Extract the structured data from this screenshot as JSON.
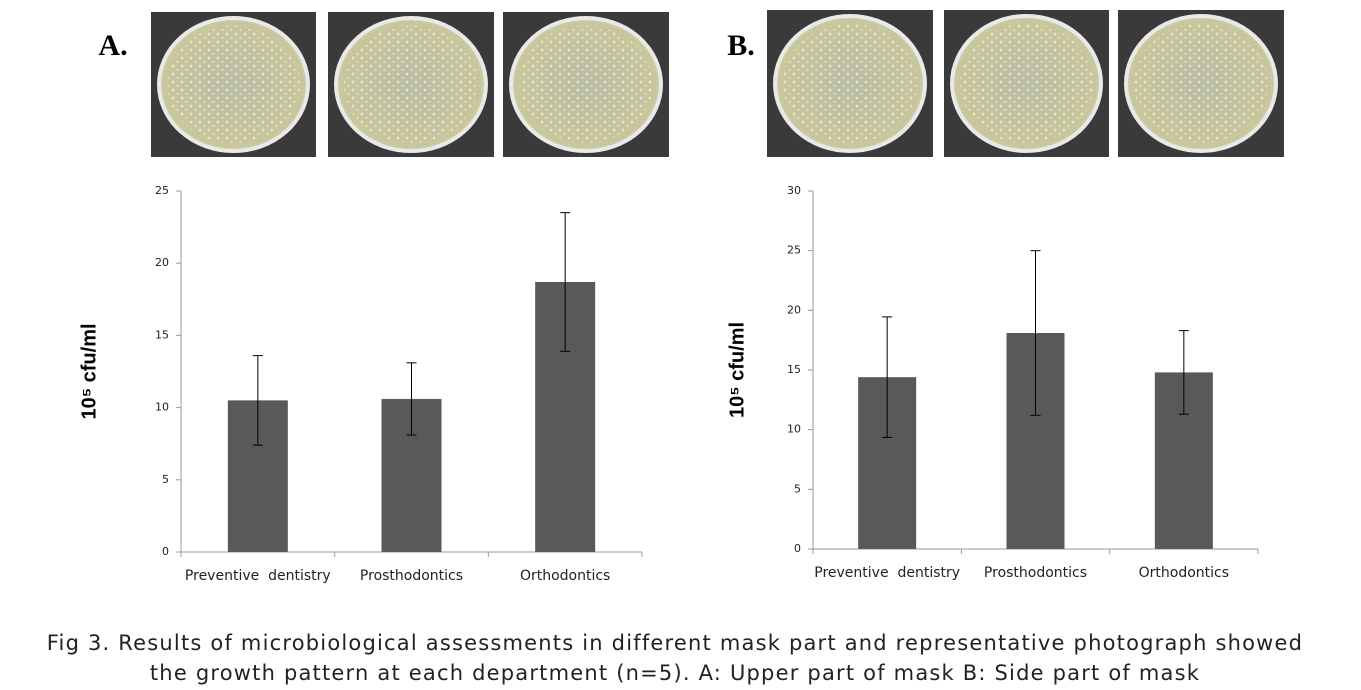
{
  "chart_data": [
    {
      "type": "bar",
      "title": "A.",
      "ylabel": "10⁵ cfu/ml",
      "categories": [
        "Preventive  dentistry",
        "Prosthodontics",
        "Orthodontics"
      ],
      "values": [
        10.5,
        10.6,
        18.7
      ],
      "errors": [
        3.1,
        2.5,
        4.8
      ],
      "color": "#595959",
      "ylim": [
        0,
        25
      ],
      "yticks": [
        0,
        5,
        10,
        15,
        20,
        25
      ]
    },
    {
      "type": "bar",
      "title": "B.",
      "ylabel": "10⁵ cfu/ml",
      "categories": [
        "Preventive  dentistry",
        "Prosthodontics",
        "Orthodontics"
      ],
      "values": [
        14.4,
        18.1,
        14.8
      ],
      "errors": [
        5.05,
        6.9,
        3.5
      ],
      "color": "#595959",
      "ylim": [
        0,
        30
      ],
      "yticks": [
        0,
        5,
        10,
        15,
        20,
        25,
        30
      ]
    }
  ],
  "caption": [
    "Fig 3. Results of microbiological assessments in different mask part and representative photograph showed",
    "the growth pattern at each department (n=5). A: Upper part of mask B: Side part of mask"
  ]
}
